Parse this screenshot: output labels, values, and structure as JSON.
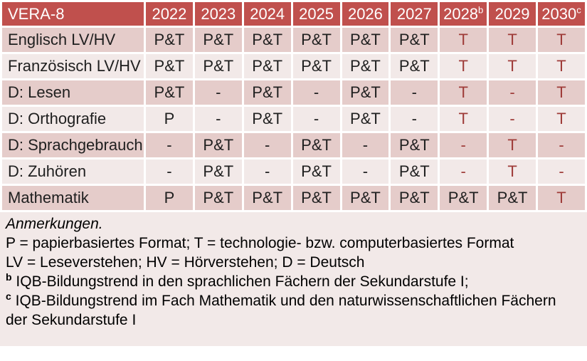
{
  "colors": {
    "header_bg": "#C0504D",
    "header_text": "#FFFFFF",
    "band_dark": "#E5CCCA",
    "band_light": "#F2E9E8",
    "notes_bg": "#F2E9E8",
    "body_text": "#1F1F1F",
    "accent_text": "#9E3B38",
    "gap": "#FFFFFF"
  },
  "table": {
    "title": "VERA-8",
    "columns": [
      {
        "label": "2022",
        "sup": ""
      },
      {
        "label": "2023",
        "sup": ""
      },
      {
        "label": "2024",
        "sup": ""
      },
      {
        "label": "2025",
        "sup": ""
      },
      {
        "label": "2026",
        "sup": ""
      },
      {
        "label": "2027",
        "sup": ""
      },
      {
        "label": "2028",
        "sup": "b"
      },
      {
        "label": "2029",
        "sup": ""
      },
      {
        "label": "2030",
        "sup": "c"
      }
    ],
    "rows": [
      {
        "label": "Englisch LV/HV",
        "cells": [
          {
            "text": "P&T"
          },
          {
            "text": "P&T"
          },
          {
            "text": "P&T"
          },
          {
            "text": "P&T"
          },
          {
            "text": "P&T"
          },
          {
            "text": "P&T"
          },
          {
            "text": "T",
            "accent": true
          },
          {
            "text": "T",
            "accent": true
          },
          {
            "text": "T",
            "accent": true
          }
        ]
      },
      {
        "label": "Französisch LV/HV",
        "cells": [
          {
            "text": "P&T"
          },
          {
            "text": "P&T"
          },
          {
            "text": "P&T"
          },
          {
            "text": "P&T"
          },
          {
            "text": "P&T"
          },
          {
            "text": "P&T"
          },
          {
            "text": "T",
            "accent": true
          },
          {
            "text": "T",
            "accent": true
          },
          {
            "text": "T",
            "accent": true
          }
        ]
      },
      {
        "label": "D: Lesen",
        "cells": [
          {
            "text": "P&T"
          },
          {
            "text": "-"
          },
          {
            "text": "P&T"
          },
          {
            "text": "-"
          },
          {
            "text": "P&T"
          },
          {
            "text": "-"
          },
          {
            "text": "T",
            "accent": true
          },
          {
            "text": "-",
            "accent": true
          },
          {
            "text": "T",
            "accent": true
          }
        ]
      },
      {
        "label": "D: Orthografie",
        "cells": [
          {
            "text": "P"
          },
          {
            "text": "-"
          },
          {
            "text": "P&T"
          },
          {
            "text": "-"
          },
          {
            "text": "P&T"
          },
          {
            "text": "-"
          },
          {
            "text": "T",
            "accent": true
          },
          {
            "text": "-",
            "accent": true
          },
          {
            "text": "T",
            "accent": true
          }
        ]
      },
      {
        "label": "D: Sprachgebrauch",
        "cells": [
          {
            "text": "-"
          },
          {
            "text": "P&T"
          },
          {
            "text": "-"
          },
          {
            "text": "P&T"
          },
          {
            "text": "-"
          },
          {
            "text": "P&T"
          },
          {
            "text": "-",
            "accent": true
          },
          {
            "text": "T",
            "accent": true
          },
          {
            "text": "-",
            "accent": true
          }
        ]
      },
      {
        "label": "D: Zuhören",
        "cells": [
          {
            "text": "-"
          },
          {
            "text": "P&T"
          },
          {
            "text": "-"
          },
          {
            "text": "P&T"
          },
          {
            "text": "-"
          },
          {
            "text": "P&T"
          },
          {
            "text": "-",
            "accent": true
          },
          {
            "text": "T",
            "accent": true
          },
          {
            "text": "-",
            "accent": true
          }
        ]
      },
      {
        "label": "Mathematik",
        "cells": [
          {
            "text": "P"
          },
          {
            "text": "P&T"
          },
          {
            "text": "P&T"
          },
          {
            "text": "P&T"
          },
          {
            "text": "P&T"
          },
          {
            "text": "P&T"
          },
          {
            "text": "P&T"
          },
          {
            "text": "P&T"
          },
          {
            "text": "T",
            "accent": true
          }
        ]
      }
    ]
  },
  "notes": {
    "heading": "Anmerkungen.",
    "lines": [
      {
        "sup": "",
        "text": "P = papierbasiertes Format; T = technologie- bzw. computerbasiertes Format"
      },
      {
        "sup": "",
        "text": "LV = Leseverstehen; HV = Hörverstehen; D = Deutsch"
      },
      {
        "sup": "b",
        "text": "IQB-Bildungstrend in den sprachlichen Fächern der Sekundarstufe I;"
      },
      {
        "sup": "c",
        "text": "IQB-Bildungstrend im Fach Mathematik und den naturwissenschaftlichen Fächern der Sekundarstufe I"
      }
    ]
  },
  "chart_data": {
    "type": "table",
    "title": "VERA-8",
    "columns": [
      "2022",
      "2023",
      "2024",
      "2025",
      "2026",
      "2027",
      "2028",
      "2029",
      "2030"
    ],
    "row_labels": [
      "Englisch LV/HV",
      "Französisch LV/HV",
      "D: Lesen",
      "D: Orthografie",
      "D: Sprachgebrauch",
      "D: Zuhören",
      "Mathematik"
    ],
    "values": [
      [
        "P&T",
        "P&T",
        "P&T",
        "P&T",
        "P&T",
        "P&T",
        "T",
        "T",
        "T"
      ],
      [
        "P&T",
        "P&T",
        "P&T",
        "P&T",
        "P&T",
        "P&T",
        "T",
        "T",
        "T"
      ],
      [
        "P&T",
        "-",
        "P&T",
        "-",
        "P&T",
        "-",
        "T",
        "-",
        "T"
      ],
      [
        "P",
        "-",
        "P&T",
        "-",
        "P&T",
        "-",
        "T",
        "-",
        "T"
      ],
      [
        "-",
        "P&T",
        "-",
        "P&T",
        "-",
        "P&T",
        "-",
        "T",
        "-"
      ],
      [
        "-",
        "P&T",
        "-",
        "P&T",
        "-",
        "P&T",
        "-",
        "T",
        "-"
      ],
      [
        "P",
        "P&T",
        "P&T",
        "P&T",
        "P&T",
        "P&T",
        "P&T",
        "P&T",
        "T"
      ]
    ]
  }
}
